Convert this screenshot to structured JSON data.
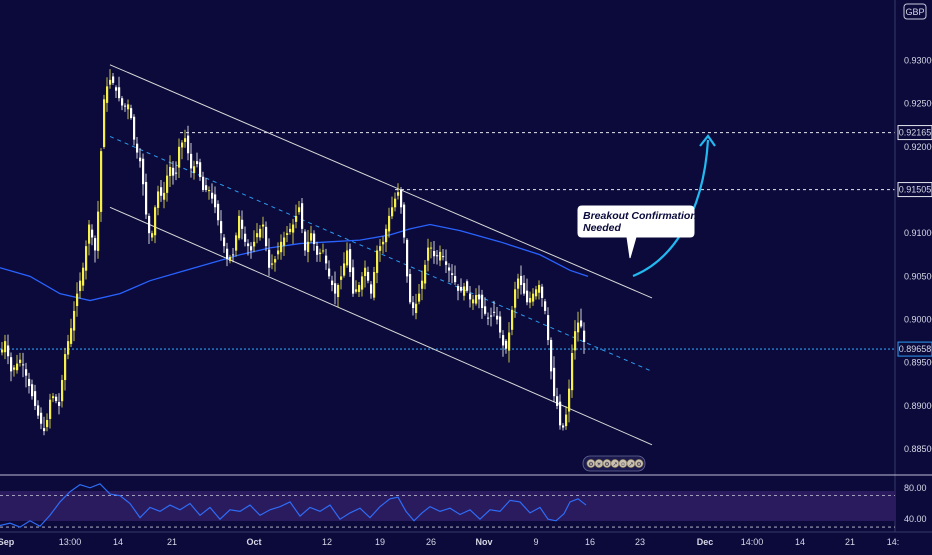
{
  "currency_label": "GBP",
  "colors": {
    "background": "#0b0a3b",
    "candle_up": "#f5ef4a",
    "candle_down": "#ffffff",
    "moving_average": "#2962ff",
    "channel": "#d9d9d9",
    "dotted_line": "#2c9bf0",
    "arrow": "#22b8f0",
    "rsi": "#2e6cf6",
    "rsi_band": "#2a1a5e"
  },
  "chart_data": [
    {
      "type": "candlestick",
      "title": "",
      "currency": "GBP",
      "x_tick_labels": [
        "Sep",
        "13:00",
        "14",
        "21",
        "Oct",
        "12",
        "19",
        "26",
        "Nov",
        "9",
        "16",
        "23",
        "Dec",
        "14:00",
        "14",
        "21",
        "14:"
      ],
      "y_tick_labels": [
        "0.93000",
        "0.92500",
        "0.92000",
        "0.91500",
        "0.91000",
        "0.90500",
        "0.90000",
        "0.89500",
        "0.89000",
        "0.88500"
      ],
      "ylim": [
        0.882,
        0.937
      ],
      "price_markers": [
        {
          "label": "0.92165",
          "value": 0.92165
        },
        {
          "label": "0.91505",
          "value": 0.91505
        },
        {
          "label": "0.89658",
          "value": 0.89658
        }
      ],
      "price_path": [
        [
          0,
          0.8962
        ],
        [
          4,
          0.8975
        ],
        [
          10,
          0.894
        ],
        [
          20,
          0.8955
        ],
        [
          30,
          0.8915
        ],
        [
          38,
          0.8885
        ],
        [
          44,
          0.8868
        ],
        [
          50,
          0.8915
        ],
        [
          58,
          0.89
        ],
        [
          64,
          0.896
        ],
        [
          70,
          0.899
        ],
        [
          76,
          0.903
        ],
        [
          82,
          0.906
        ],
        [
          88,
          0.911
        ],
        [
          94,
          0.908
        ],
        [
          98,
          0.914
        ],
        [
          102,
          0.925
        ],
        [
          106,
          0.927
        ],
        [
          110,
          0.928
        ],
        [
          116,
          0.9262
        ],
        [
          122,
          0.9245
        ],
        [
          128,
          0.925
        ],
        [
          134,
          0.92
        ],
        [
          140,
          0.918
        ],
        [
          146,
          0.911
        ],
        [
          150,
          0.909
        ],
        [
          156,
          0.915
        ],
        [
          162,
          0.914
        ],
        [
          168,
          0.918
        ],
        [
          174,
          0.916
        ],
        [
          178,
          0.92
        ],
        [
          184,
          0.921
        ],
        [
          190,
          0.9175
        ],
        [
          196,
          0.918
        ],
        [
          202,
          0.915
        ],
        [
          208,
          0.915
        ],
        [
          214,
          0.913
        ],
        [
          220,
          0.91
        ],
        [
          226,
          0.907
        ],
        [
          232,
          0.9075
        ],
        [
          238,
          0.912
        ],
        [
          244,
          0.909
        ],
        [
          250,
          0.908
        ],
        [
          256,
          0.91
        ],
        [
          262,
          0.911
        ],
        [
          268,
          0.906
        ],
        [
          274,
          0.907
        ],
        [
          280,
          0.909
        ],
        [
          286,
          0.91
        ],
        [
          292,
          0.911
        ],
        [
          298,
          0.913
        ],
        [
          304,
          0.908
        ],
        [
          310,
          0.91
        ],
        [
          316,
          0.9075
        ],
        [
          322,
          0.908
        ],
        [
          328,
          0.905
        ],
        [
          334,
          0.903
        ],
        [
          340,
          0.905
        ],
        [
          346,
          0.908
        ],
        [
          352,
          0.903
        ],
        [
          358,
          0.904
        ],
        [
          364,
          0.906
        ],
        [
          370,
          0.903
        ],
        [
          376,
          0.908
        ],
        [
          382,
          0.909
        ],
        [
          388,
          0.912
        ],
        [
          394,
          0.914
        ],
        [
          398,
          0.915
        ],
        [
          402,
          0.911
        ],
        [
          406,
          0.905
        ],
        [
          410,
          0.901
        ],
        [
          416,
          0.902
        ],
        [
          422,
          0.905
        ],
        [
          428,
          0.909
        ],
        [
          434,
          0.907
        ],
        [
          440,
          0.908
        ],
        [
          446,
          0.906
        ],
        [
          452,
          0.905
        ],
        [
          458,
          0.903
        ],
        [
          464,
          0.904
        ],
        [
          470,
          0.902
        ],
        [
          476,
          0.903
        ],
        [
          482,
          0.901
        ],
        [
          488,
          0.9
        ],
        [
          494,
          0.901
        ],
        [
          500,
          0.898
        ],
        [
          504,
          0.896
        ],
        [
          508,
          0.8985
        ],
        [
          512,
          0.902
        ],
        [
          516,
          0.905
        ],
        [
          520,
          0.904
        ],
        [
          526,
          0.902
        ],
        [
          532,
          0.903
        ],
        [
          538,
          0.904
        ],
        [
          544,
          0.901
        ],
        [
          548,
          0.8965
        ],
        [
          552,
          0.8915
        ],
        [
          556,
          0.89
        ],
        [
          560,
          0.887
        ],
        [
          564,
          0.888
        ],
        [
          568,
          0.892
        ],
        [
          572,
          0.8975
        ],
        [
          576,
          0.8998
        ],
        [
          580,
          0.8992
        ],
        [
          584,
          0.8968
        ]
      ],
      "moving_average": [
        [
          0,
          0.906
        ],
        [
          30,
          0.905
        ],
        [
          60,
          0.903
        ],
        [
          90,
          0.9022
        ],
        [
          120,
          0.903
        ],
        [
          150,
          0.9045
        ],
        [
          180,
          0.9055
        ],
        [
          210,
          0.9065
        ],
        [
          240,
          0.9075
        ],
        [
          270,
          0.9083
        ],
        [
          300,
          0.9088
        ],
        [
          330,
          0.909
        ],
        [
          360,
          0.9092
        ],
        [
          390,
          0.9098
        ],
        [
          410,
          0.9105
        ],
        [
          430,
          0.911
        ],
        [
          460,
          0.9103
        ],
        [
          500,
          0.909
        ],
        [
          540,
          0.9075
        ],
        [
          570,
          0.9057
        ],
        [
          588,
          0.905
        ]
      ],
      "channel_upper": [
        [
          110,
          0.9295
        ],
        [
          652,
          0.9025
        ]
      ],
      "channel_lower": [
        [
          110,
          0.913
        ],
        [
          652,
          0.8855
        ]
      ],
      "channel_mid_dashed": [
        [
          110,
          0.9212
        ],
        [
          652,
          0.894
        ]
      ],
      "callout": {
        "line1": "Breakout Confirmation",
        "line2": "Needed"
      }
    },
    {
      "type": "line",
      "title": "",
      "indicator": "RSI",
      "y_tick_labels": [
        "80.00",
        "40.00"
      ],
      "ylim": [
        25,
        95
      ],
      "levels": [
        70,
        30
      ],
      "rsi_path": [
        [
          0,
          32
        ],
        [
          10,
          35
        ],
        [
          20,
          30
        ],
        [
          30,
          38
        ],
        [
          40,
          31
        ],
        [
          50,
          45
        ],
        [
          60,
          62
        ],
        [
          70,
          75
        ],
        [
          80,
          84
        ],
        [
          90,
          80
        ],
        [
          100,
          85
        ],
        [
          110,
          72
        ],
        [
          120,
          70
        ],
        [
          130,
          60
        ],
        [
          140,
          42
        ],
        [
          150,
          55
        ],
        [
          160,
          50
        ],
        [
          170,
          58
        ],
        [
          180,
          52
        ],
        [
          190,
          60
        ],
        [
          200,
          45
        ],
        [
          210,
          55
        ],
        [
          220,
          40
        ],
        [
          230,
          52
        ],
        [
          240,
          50
        ],
        [
          250,
          58
        ],
        [
          260,
          45
        ],
        [
          270,
          52
        ],
        [
          280,
          56
        ],
        [
          290,
          62
        ],
        [
          300,
          44
        ],
        [
          310,
          55
        ],
        [
          320,
          50
        ],
        [
          330,
          58
        ],
        [
          340,
          40
        ],
        [
          350,
          48
        ],
        [
          360,
          54
        ],
        [
          370,
          42
        ],
        [
          380,
          56
        ],
        [
          390,
          66
        ],
        [
          398,
          68
        ],
        [
          406,
          50
        ],
        [
          414,
          38
        ],
        [
          422,
          48
        ],
        [
          430,
          56
        ],
        [
          440,
          50
        ],
        [
          450,
          54
        ],
        [
          460,
          46
        ],
        [
          470,
          52
        ],
        [
          480,
          40
        ],
        [
          490,
          52
        ],
        [
          500,
          50
        ],
        [
          510,
          64
        ],
        [
          520,
          62
        ],
        [
          530,
          48
        ],
        [
          540,
          55
        ],
        [
          548,
          40
        ],
        [
          556,
          38
        ],
        [
          564,
          47
        ],
        [
          570,
          62
        ],
        [
          578,
          66
        ],
        [
          586,
          58
        ]
      ]
    }
  ],
  "toolbar_pills": [
    "⚙",
    "☀",
    "⚙",
    "↗",
    "☺",
    "↗",
    "⚙"
  ]
}
